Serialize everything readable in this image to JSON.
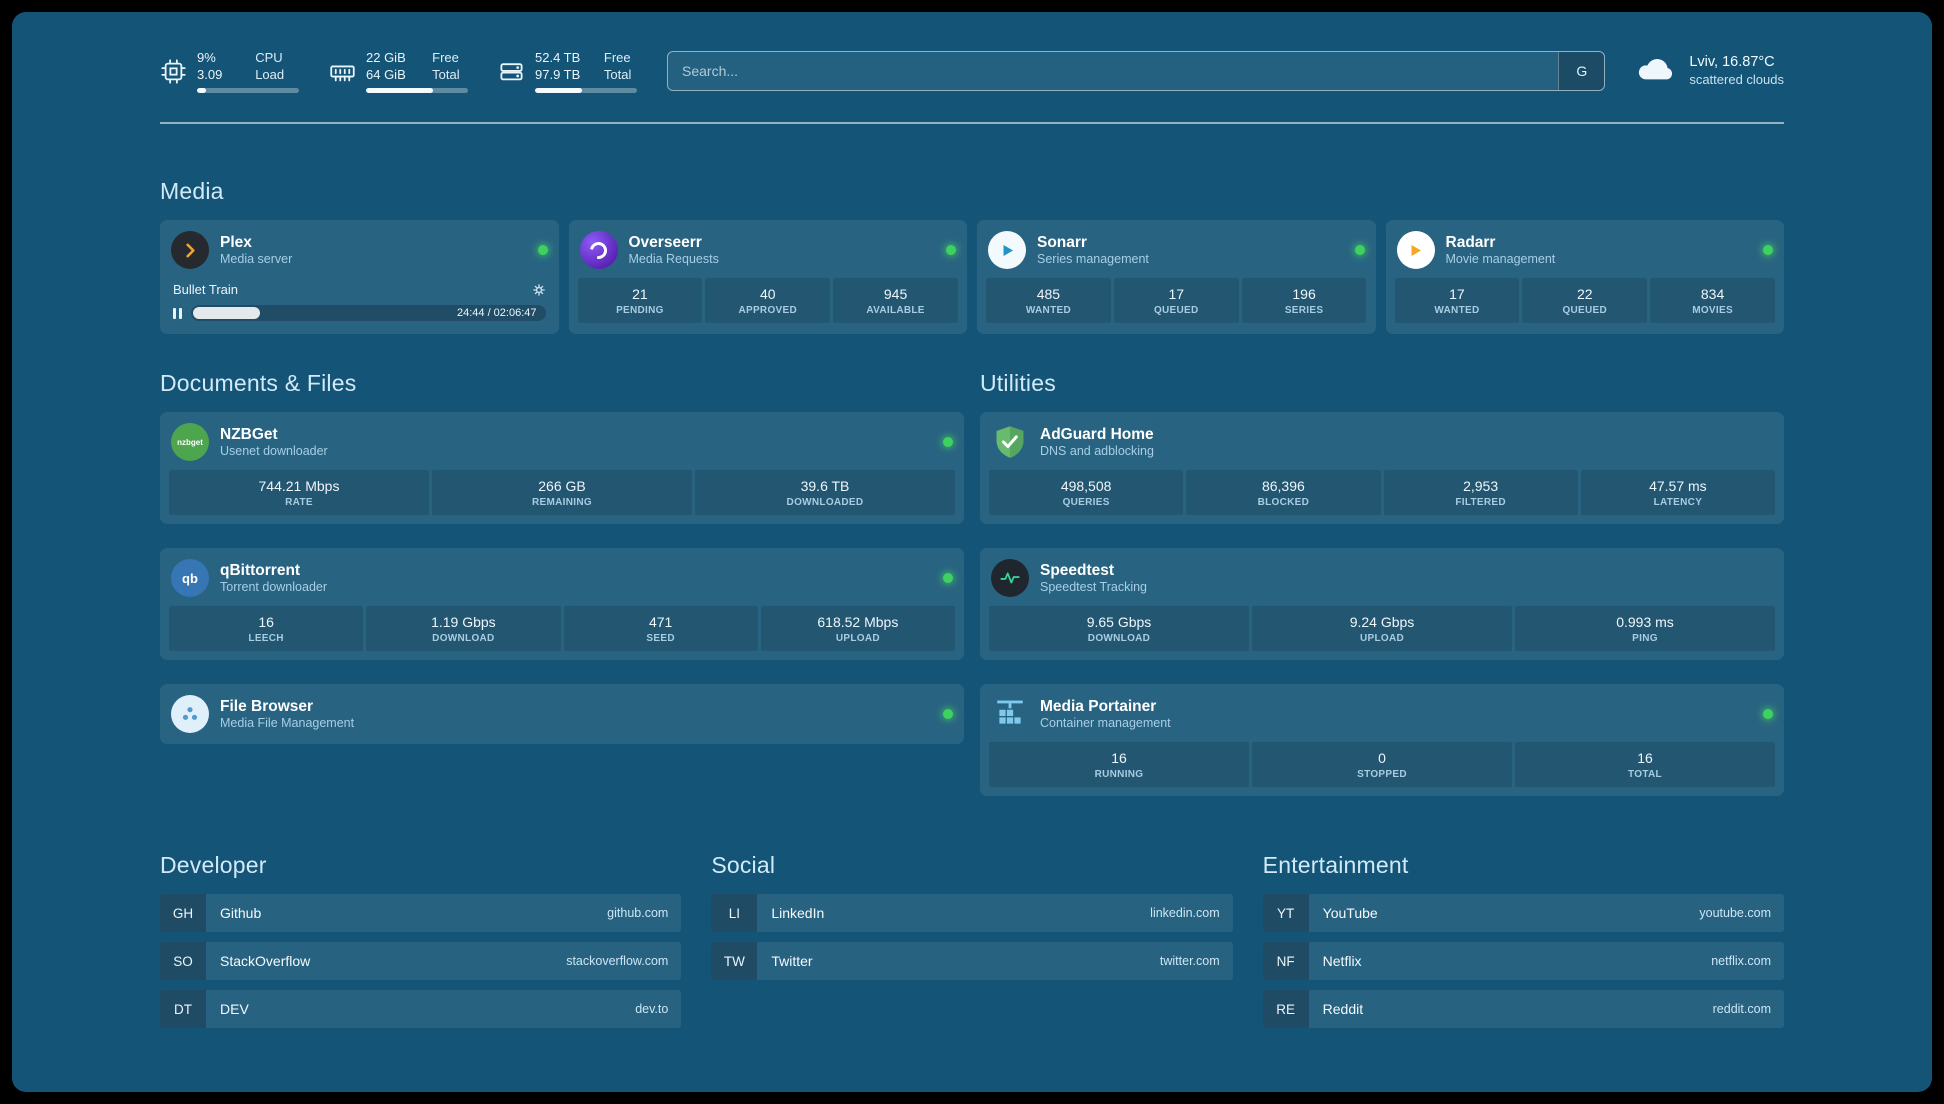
{
  "topbar": {
    "resources": [
      {
        "icon": "cpu-icon",
        "values": [
          "9%",
          "3.09"
        ],
        "labels": [
          "CPU",
          "Load"
        ],
        "progress": 9
      },
      {
        "icon": "memory-icon",
        "values": [
          "22 GiB",
          "64 GiB"
        ],
        "labels": [
          "Free",
          "Total"
        ],
        "progress": 66
      },
      {
        "icon": "disk-icon",
        "values": [
          "52.4 TB",
          "97.9 TB"
        ],
        "labels": [
          "Free",
          "Total"
        ],
        "progress": 46
      }
    ],
    "search": {
      "placeholder": "Search...",
      "engine_button": "G"
    },
    "weather": {
      "icon": "cloud-icon",
      "location": "Lviv, 16.87°C",
      "condition": "scattered clouds"
    }
  },
  "groups": {
    "media": {
      "title": "Media",
      "plex": {
        "name": "Plex",
        "subtitle": "Media server",
        "status": "online",
        "now_playing": "Bullet Train",
        "time": "24:44 / 02:06:47",
        "progress_pct": 19
      },
      "overseerr": {
        "name": "Overseerr",
        "subtitle": "Media Requests",
        "status": "online",
        "stats": [
          {
            "value": "21",
            "label": "PENDING"
          },
          {
            "value": "40",
            "label": "APPROVED"
          },
          {
            "value": "945",
            "label": "AVAILABLE"
          }
        ]
      },
      "sonarr": {
        "name": "Sonarr",
        "subtitle": "Series management",
        "status": "online",
        "stats": [
          {
            "value": "485",
            "label": "WANTED"
          },
          {
            "value": "17",
            "label": "QUEUED"
          },
          {
            "value": "196",
            "label": "SERIES"
          }
        ]
      },
      "radarr": {
        "name": "Radarr",
        "subtitle": "Movie management",
        "status": "online",
        "stats": [
          {
            "value": "17",
            "label": "WANTED"
          },
          {
            "value": "22",
            "label": "QUEUED"
          },
          {
            "value": "834",
            "label": "MOVIES"
          }
        ]
      }
    },
    "documents": {
      "title": "Documents & Files",
      "nzbget": {
        "name": "NZBGet",
        "subtitle": "Usenet downloader",
        "status": "online",
        "icon_text": "nzbget",
        "stats": [
          {
            "value": "744.21 Mbps",
            "label": "RATE"
          },
          {
            "value": "266 GB",
            "label": "REMAINING"
          },
          {
            "value": "39.6 TB",
            "label": "DOWNLOADED"
          }
        ]
      },
      "qbittorrent": {
        "name": "qBittorrent",
        "subtitle": "Torrent downloader",
        "status": "online",
        "icon_text": "qb",
        "stats": [
          {
            "value": "16",
            "label": "LEECH"
          },
          {
            "value": "1.19 Gbps",
            "label": "DOWNLOAD"
          },
          {
            "value": "471",
            "label": "SEED"
          },
          {
            "value": "618.52 Mbps",
            "label": "UPLOAD"
          }
        ]
      },
      "filebrowser": {
        "name": "File Browser",
        "subtitle": "Media File Management",
        "status": "online"
      }
    },
    "utilities": {
      "title": "Utilities",
      "adguard": {
        "name": "AdGuard Home",
        "subtitle": "DNS and adblocking",
        "stats": [
          {
            "value": "498,508",
            "label": "QUERIES"
          },
          {
            "value": "86,396",
            "label": "BLOCKED"
          },
          {
            "value": "2,953",
            "label": "FILTERED"
          },
          {
            "value": "47.57 ms",
            "label": "LATENCY"
          }
        ]
      },
      "speedtest": {
        "name": "Speedtest",
        "subtitle": "Speedtest Tracking",
        "stats": [
          {
            "value": "9.65 Gbps",
            "label": "DOWNLOAD"
          },
          {
            "value": "9.24 Gbps",
            "label": "UPLOAD"
          },
          {
            "value": "0.993 ms",
            "label": "PING"
          }
        ]
      },
      "portainer": {
        "name": "Media Portainer",
        "subtitle": "Container management",
        "status": "online",
        "stats": [
          {
            "value": "16",
            "label": "RUNNING"
          },
          {
            "value": "0",
            "label": "STOPPED"
          },
          {
            "value": "16",
            "label": "TOTAL"
          }
        ]
      }
    }
  },
  "bookmarks": {
    "developer": {
      "title": "Developer",
      "items": [
        {
          "abbr": "GH",
          "name": "Github",
          "url": "github.com"
        },
        {
          "abbr": "SO",
          "name": "StackOverflow",
          "url": "stackoverflow.com"
        },
        {
          "abbr": "DT",
          "name": "DEV",
          "url": "dev.to"
        }
      ]
    },
    "social": {
      "title": "Social",
      "items": [
        {
          "abbr": "LI",
          "name": "LinkedIn",
          "url": "linkedin.com"
        },
        {
          "abbr": "TW",
          "name": "Twitter",
          "url": "twitter.com"
        }
      ]
    },
    "entertainment": {
      "title": "Entertainment",
      "items": [
        {
          "abbr": "YT",
          "name": "YouTube",
          "url": "youtube.com"
        },
        {
          "abbr": "NF",
          "name": "Netflix",
          "url": "netflix.com"
        },
        {
          "abbr": "RE",
          "name": "Reddit",
          "url": "reddit.com"
        }
      ]
    }
  },
  "colors": {
    "background": "#145476",
    "status_online": "#3fd160",
    "plex_brand": "#e9a43a",
    "overseerr_brand": "#5b21b6",
    "sonarr_brand": "#2193c9",
    "radarr_brand": "#f5a623",
    "nzbget_brand": "#4da54d",
    "qbittorrent_brand": "#3676b5",
    "adguard_brand": "#68ba6f",
    "speedtest_pulse": "#34d399",
    "portainer_brand": "#7ec9ec"
  }
}
